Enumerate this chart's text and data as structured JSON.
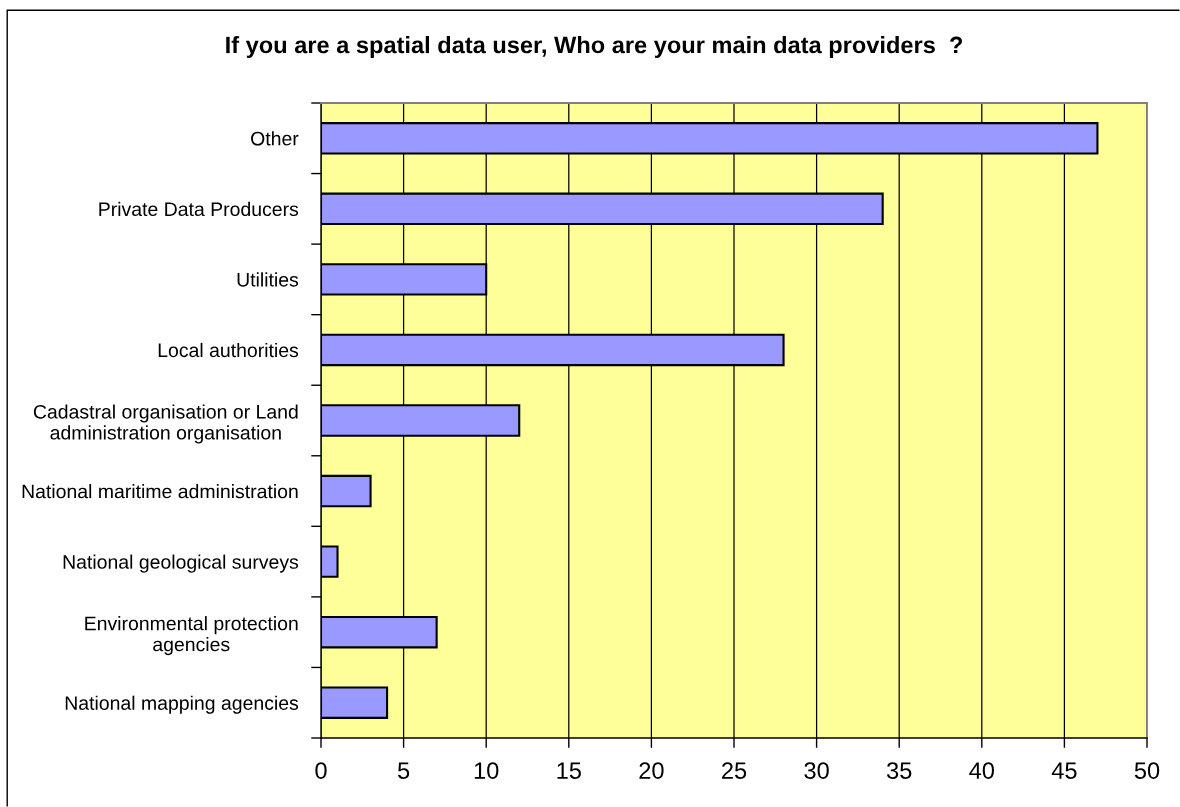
{
  "chart_data": {
    "type": "bar",
    "orientation": "horizontal",
    "title": "If you are a spatial data user, Who are your main data providers  ?",
    "categories": [
      "Other",
      "Private Data Producers",
      "Utilities",
      "Local authorities",
      "Cadastral organisation or Land\nadministration organisation",
      "National maritime administration",
      "National geological surveys",
      "Environmental protection\nagencies",
      "National mapping agencies"
    ],
    "values": [
      47,
      34,
      10,
      28,
      12,
      3,
      1,
      7,
      4
    ],
    "color": "#9999ff",
    "xlim": [
      0,
      50
    ],
    "xticks": [
      0,
      5,
      10,
      15,
      20,
      25,
      30,
      35,
      40,
      45,
      50
    ],
    "grid": "x"
  }
}
